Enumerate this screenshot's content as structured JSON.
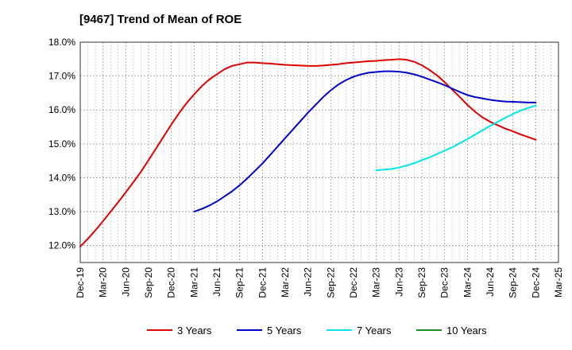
{
  "chart_data": {
    "type": "line",
    "title": "[9467]  Trend of Mean of ROE",
    "xlabel": "",
    "ylabel": "",
    "x_ticks": [
      "Dec-19",
      "Mar-20",
      "Jun-20",
      "Sep-20",
      "Dec-20",
      "Mar-21",
      "Jun-21",
      "Sep-21",
      "Dec-21",
      "Mar-22",
      "Jun-22",
      "Sep-22",
      "Dec-22",
      "Mar-23",
      "Jun-23",
      "Sep-23",
      "Dec-23",
      "Mar-24",
      "Jun-24",
      "Sep-24",
      "Dec-24",
      "Mar-25"
    ],
    "y_ticks": [
      "12.0%",
      "13.0%",
      "14.0%",
      "15.0%",
      "16.0%",
      "17.0%",
      "18.0%"
    ],
    "ylim": [
      11.5,
      18.0
    ],
    "y_unit": "%",
    "grid": true,
    "legend_position": "bottom",
    "series": [
      {
        "name": "3 Years",
        "color": "#dd0000",
        "points": [
          [
            "Dec-19",
            11.97
          ],
          [
            "Jan-20",
            12.2
          ],
          [
            "Feb-20",
            12.45
          ],
          [
            "Mar-20",
            12.72
          ],
          [
            "Apr-20",
            13.0
          ],
          [
            "May-20",
            13.28
          ],
          [
            "Jun-20",
            13.57
          ],
          [
            "Jul-20",
            13.87
          ],
          [
            "Aug-20",
            14.18
          ],
          [
            "Sep-20",
            14.52
          ],
          [
            "Oct-20",
            14.87
          ],
          [
            "Nov-20",
            15.22
          ],
          [
            "Dec-20",
            15.57
          ],
          [
            "Jan-21",
            15.9
          ],
          [
            "Feb-21",
            16.2
          ],
          [
            "Mar-21",
            16.46
          ],
          [
            "Apr-21",
            16.7
          ],
          [
            "May-21",
            16.9
          ],
          [
            "Jun-21",
            17.05
          ],
          [
            "Jul-21",
            17.2
          ],
          [
            "Aug-21",
            17.3
          ],
          [
            "Sep-21",
            17.35
          ],
          [
            "Oct-21",
            17.4
          ],
          [
            "Nov-21",
            17.4
          ],
          [
            "Dec-21",
            17.38
          ],
          [
            "Jan-22",
            17.37
          ],
          [
            "Feb-22",
            17.35
          ],
          [
            "Mar-22",
            17.33
          ],
          [
            "Apr-22",
            17.32
          ],
          [
            "May-22",
            17.31
          ],
          [
            "Jun-22",
            17.3
          ],
          [
            "Jul-22",
            17.3
          ],
          [
            "Aug-22",
            17.31
          ],
          [
            "Sep-22",
            17.33
          ],
          [
            "Oct-22",
            17.35
          ],
          [
            "Nov-22",
            17.38
          ],
          [
            "Dec-22",
            17.4
          ],
          [
            "Jan-23",
            17.42
          ],
          [
            "Feb-23",
            17.44
          ],
          [
            "Mar-23",
            17.45
          ],
          [
            "Apr-23",
            17.47
          ],
          [
            "May-23",
            17.48
          ],
          [
            "Jun-23",
            17.5
          ],
          [
            "Jul-23",
            17.48
          ],
          [
            "Aug-23",
            17.42
          ],
          [
            "Sep-23",
            17.32
          ],
          [
            "Oct-23",
            17.18
          ],
          [
            "Nov-23",
            17.02
          ],
          [
            "Dec-23",
            16.82
          ],
          [
            "Jan-24",
            16.6
          ],
          [
            "Feb-24",
            16.38
          ],
          [
            "Mar-24",
            16.15
          ],
          [
            "Apr-24",
            15.95
          ],
          [
            "May-24",
            15.78
          ],
          [
            "Jun-24",
            15.65
          ],
          [
            "Jul-24",
            15.55
          ],
          [
            "Aug-24",
            15.45
          ],
          [
            "Sep-24",
            15.37
          ],
          [
            "Oct-24",
            15.28
          ],
          [
            "Nov-24",
            15.2
          ],
          [
            "Dec-24",
            15.12
          ]
        ]
      },
      {
        "name": "5 Years",
        "color": "#0000cc",
        "points": [
          [
            "Mar-21",
            13.0
          ],
          [
            "Apr-21",
            13.08
          ],
          [
            "May-21",
            13.18
          ],
          [
            "Jun-21",
            13.3
          ],
          [
            "Jul-21",
            13.45
          ],
          [
            "Aug-21",
            13.6
          ],
          [
            "Sep-21",
            13.78
          ],
          [
            "Oct-21",
            13.98
          ],
          [
            "Nov-21",
            14.2
          ],
          [
            "Dec-21",
            14.42
          ],
          [
            "Jan-22",
            14.67
          ],
          [
            "Feb-22",
            14.92
          ],
          [
            "Mar-22",
            15.17
          ],
          [
            "Apr-22",
            15.42
          ],
          [
            "May-22",
            15.67
          ],
          [
            "Jun-22",
            15.92
          ],
          [
            "Jul-22",
            16.15
          ],
          [
            "Aug-22",
            16.38
          ],
          [
            "Sep-22",
            16.58
          ],
          [
            "Oct-22",
            16.75
          ],
          [
            "Nov-22",
            16.88
          ],
          [
            "Dec-22",
            16.98
          ],
          [
            "Jan-23",
            17.05
          ],
          [
            "Feb-23",
            17.1
          ],
          [
            "Mar-23",
            17.12
          ],
          [
            "Apr-23",
            17.14
          ],
          [
            "May-23",
            17.14
          ],
          [
            "Jun-23",
            17.13
          ],
          [
            "Jul-23",
            17.1
          ],
          [
            "Aug-23",
            17.05
          ],
          [
            "Sep-23",
            16.98
          ],
          [
            "Oct-23",
            16.9
          ],
          [
            "Nov-23",
            16.82
          ],
          [
            "Dec-23",
            16.73
          ],
          [
            "Jan-24",
            16.63
          ],
          [
            "Feb-24",
            16.53
          ],
          [
            "Mar-24",
            16.44
          ],
          [
            "Apr-24",
            16.38
          ],
          [
            "May-24",
            16.34
          ],
          [
            "Jun-24",
            16.3
          ],
          [
            "Jul-24",
            16.27
          ],
          [
            "Aug-24",
            16.25
          ],
          [
            "Sep-24",
            16.24
          ],
          [
            "Oct-24",
            16.23
          ],
          [
            "Nov-24",
            16.22
          ],
          [
            "Dec-24",
            16.22
          ]
        ]
      },
      {
        "name": "7 Years",
        "color": "#00e5ee",
        "points": [
          [
            "Mar-23",
            14.22
          ],
          [
            "Apr-23",
            14.24
          ],
          [
            "May-23",
            14.26
          ],
          [
            "Jun-23",
            14.3
          ],
          [
            "Jul-23",
            14.36
          ],
          [
            "Aug-23",
            14.43
          ],
          [
            "Sep-23",
            14.52
          ],
          [
            "Oct-23",
            14.6
          ],
          [
            "Nov-23",
            14.7
          ],
          [
            "Dec-23",
            14.8
          ],
          [
            "Jan-24",
            14.9
          ],
          [
            "Feb-24",
            15.02
          ],
          [
            "Mar-24",
            15.14
          ],
          [
            "Apr-24",
            15.27
          ],
          [
            "May-24",
            15.4
          ],
          [
            "Jun-24",
            15.53
          ],
          [
            "Jul-24",
            15.65
          ],
          [
            "Aug-24",
            15.77
          ],
          [
            "Sep-24",
            15.88
          ],
          [
            "Oct-24",
            15.98
          ],
          [
            "Nov-24",
            16.06
          ],
          [
            "Dec-24",
            16.13
          ]
        ]
      },
      {
        "name": "10 Years",
        "color": "#228b22",
        "points": []
      }
    ]
  }
}
